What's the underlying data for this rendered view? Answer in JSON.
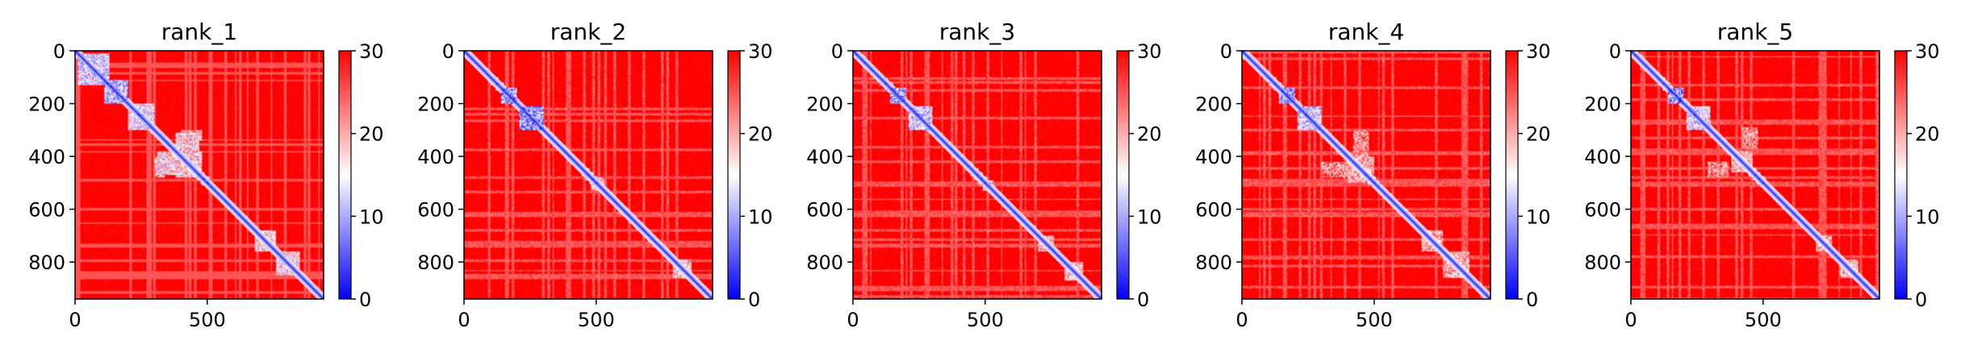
{
  "chart_data": [
    {
      "type": "heatmap",
      "title": "rank_1",
      "xlabel": "",
      "ylabel": "",
      "xlim": [
        0,
        940
      ],
      "ylim": [
        940,
        0
      ],
      "x_ticks": [
        0,
        500
      ],
      "y_ticks": [
        0,
        200,
        400,
        600,
        800
      ],
      "colorbar": {
        "ticks": [
          0,
          10,
          20,
          30
        ],
        "range": [
          0,
          30
        ],
        "cmap": [
          "#0000ff",
          "#ffffff",
          "#ff0000"
        ]
      },
      "diagonal_blocks": [
        {
          "start": 10,
          "end": 130,
          "value": 6
        },
        {
          "start": 110,
          "end": 200,
          "value": 4
        },
        {
          "start": 200,
          "end": 300,
          "value": 8
        },
        {
          "start": 680,
          "end": 760,
          "value": 10
        },
        {
          "start": 760,
          "end": 850,
          "value": 9
        }
      ],
      "contact_patches": [
        {
          "x": [
            380,
            470
          ],
          "y": [
            310,
            480
          ],
          "value": 9
        },
        {
          "x": [
            300,
            340
          ],
          "y": [
            400,
            480
          ],
          "value": 12
        }
      ]
    },
    {
      "type": "heatmap",
      "title": "rank_2",
      "xlabel": "",
      "ylabel": "",
      "xlim": [
        0,
        940
      ],
      "ylim": [
        940,
        0
      ],
      "x_ticks": [
        0,
        500
      ],
      "y_ticks": [
        0,
        200,
        400,
        600,
        800
      ],
      "colorbar": {
        "ticks": [
          0,
          10,
          20,
          30
        ],
        "range": [
          0,
          30
        ],
        "cmap": [
          "#0000ff",
          "#ffffff",
          "#ff0000"
        ]
      },
      "diagonal_blocks": [
        {
          "start": 140,
          "end": 200,
          "value": 3
        },
        {
          "start": 210,
          "end": 300,
          "value": 2
        },
        {
          "start": 480,
          "end": 530,
          "value": 12
        },
        {
          "start": 790,
          "end": 860,
          "value": 11
        }
      ],
      "contact_patches": []
    },
    {
      "type": "heatmap",
      "title": "rank_3",
      "xlabel": "",
      "ylabel": "",
      "xlim": [
        0,
        940
      ],
      "ylim": [
        940,
        0
      ],
      "x_ticks": [
        0,
        500
      ],
      "y_ticks": [
        0,
        200,
        400,
        600,
        800
      ],
      "colorbar": {
        "ticks": [
          0,
          10,
          20,
          30
        ],
        "range": [
          0,
          30
        ],
        "cmap": [
          "#0000ff",
          "#ffffff",
          "#ff0000"
        ]
      },
      "diagonal_blocks": [
        {
          "start": 140,
          "end": 200,
          "value": 3
        },
        {
          "start": 210,
          "end": 300,
          "value": 6
        },
        {
          "start": 490,
          "end": 530,
          "value": 9
        },
        {
          "start": 700,
          "end": 760,
          "value": 11
        },
        {
          "start": 800,
          "end": 870,
          "value": 11
        }
      ],
      "contact_patches": []
    },
    {
      "type": "heatmap",
      "title": "rank_4",
      "xlabel": "",
      "ylabel": "",
      "xlim": [
        0,
        940
      ],
      "ylim": [
        940,
        0
      ],
      "x_ticks": [
        0,
        500
      ],
      "y_ticks": [
        0,
        200,
        400,
        600,
        800
      ],
      "colorbar": {
        "ticks": [
          0,
          10,
          20,
          30
        ],
        "range": [
          0,
          30
        ],
        "cmap": [
          "#0000ff",
          "#ffffff",
          "#ff0000"
        ]
      },
      "diagonal_blocks": [
        {
          "start": 140,
          "end": 200,
          "value": 3
        },
        {
          "start": 210,
          "end": 300,
          "value": 6
        },
        {
          "start": 400,
          "end": 500,
          "value": 13
        },
        {
          "start": 680,
          "end": 760,
          "value": 13
        },
        {
          "start": 760,
          "end": 860,
          "value": 13
        }
      ],
      "contact_patches": [
        {
          "x": [
            420,
            480
          ],
          "y": [
            300,
            400
          ],
          "value": 14
        }
      ]
    },
    {
      "type": "heatmap",
      "title": "rank_5",
      "xlabel": "",
      "ylabel": "",
      "xlim": [
        0,
        940
      ],
      "ylim": [
        940,
        0
      ],
      "x_ticks": [
        0,
        500
      ],
      "y_ticks": [
        0,
        200,
        400,
        600,
        800
      ],
      "colorbar": {
        "ticks": [
          0,
          10,
          20,
          30
        ],
        "range": [
          0,
          30
        ],
        "cmap": [
          "#0000ff",
          "#ffffff",
          "#ff0000"
        ]
      },
      "diagonal_blocks": [
        {
          "start": 140,
          "end": 200,
          "value": 2
        },
        {
          "start": 210,
          "end": 300,
          "value": 7
        },
        {
          "start": 380,
          "end": 460,
          "value": 12
        },
        {
          "start": 700,
          "end": 760,
          "value": 13
        },
        {
          "start": 790,
          "end": 860,
          "value": 12
        }
      ],
      "contact_patches": [
        {
          "x": [
            420,
            480
          ],
          "y": [
            290,
            370
          ],
          "value": 14
        }
      ]
    }
  ]
}
